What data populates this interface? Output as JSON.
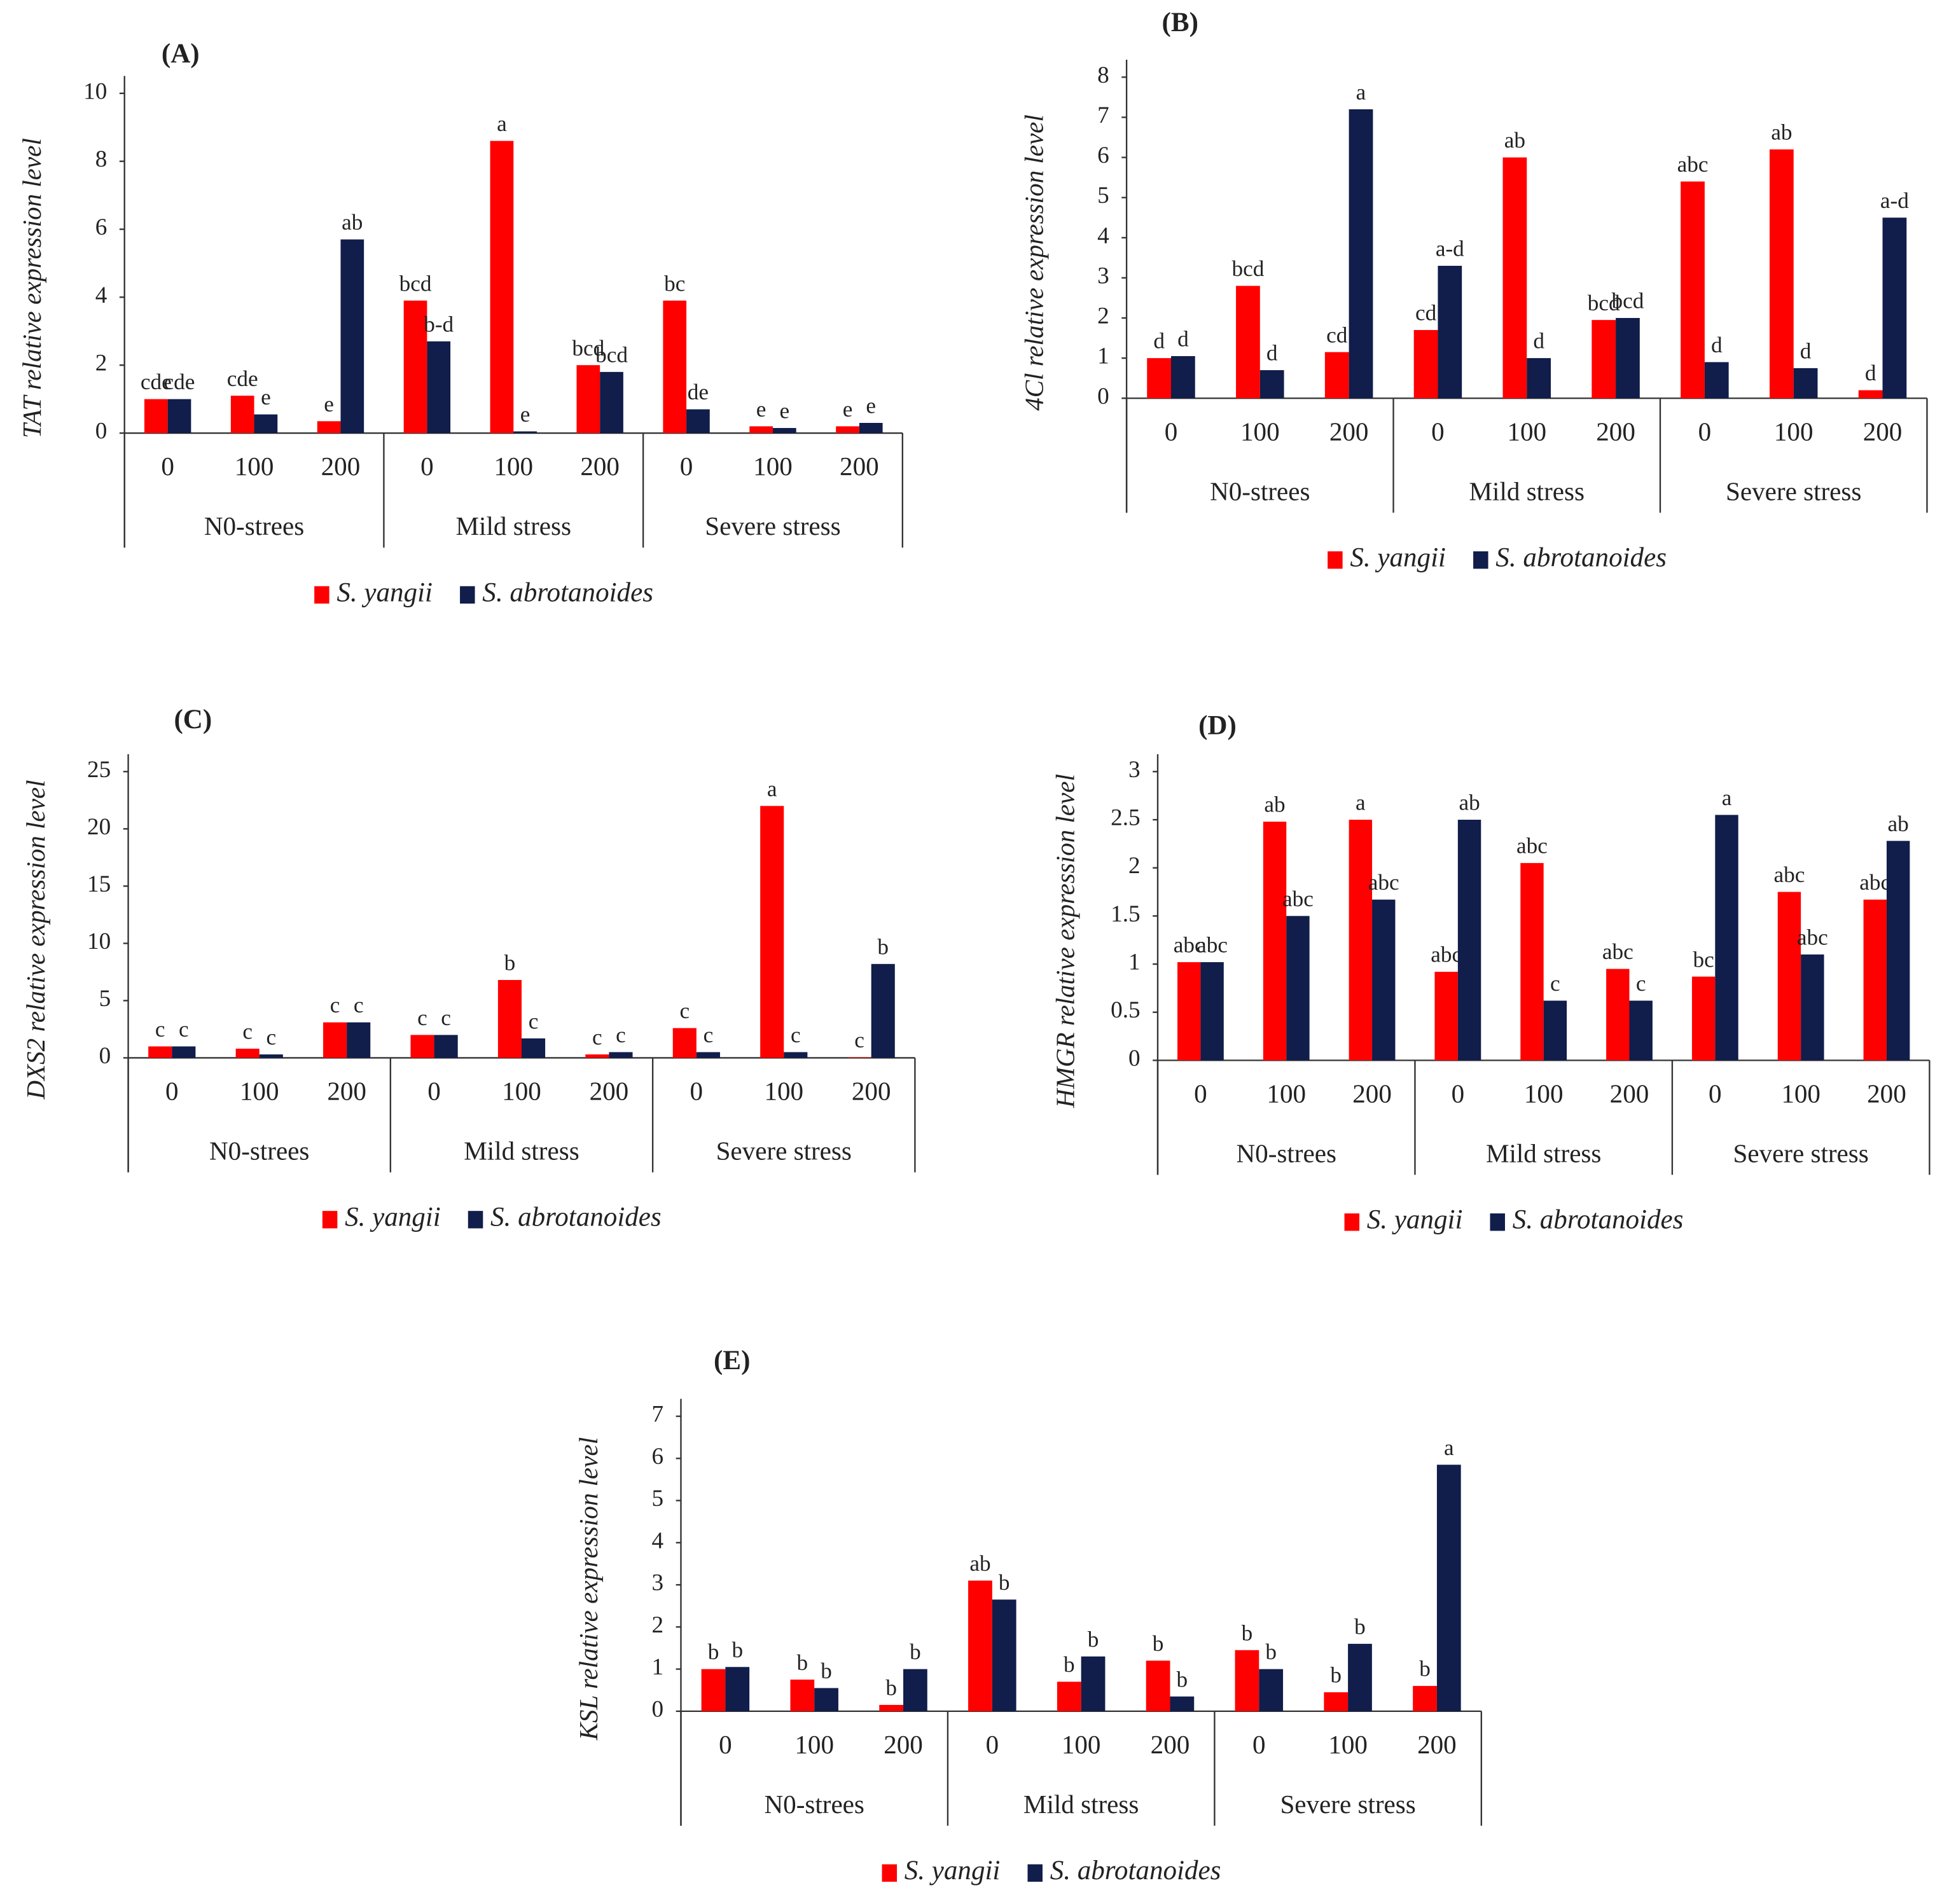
{
  "chart_data": [
    {
      "type": "bar",
      "title": "(A)",
      "ylabel": "TAT relative expression level",
      "categories": [
        "0",
        "100",
        "200",
        "0",
        "100",
        "200",
        "0",
        "100",
        "200"
      ],
      "groups": [
        "N0-strees",
        "Mild stress",
        "Severe stress"
      ],
      "ylim": [
        0,
        10
      ],
      "yticks": [
        0,
        2,
        4,
        6,
        8,
        10
      ],
      "series": [
        {
          "name": "S. yangii",
          "color": "#ff0000",
          "values": [
            1.0,
            1.1,
            0.35,
            3.9,
            8.6,
            2.0,
            3.9,
            0.2,
            0.2
          ],
          "labels": [
            "cde",
            "cde",
            "e",
            "bcd",
            "a",
            "bcd",
            "bc",
            "e",
            "e"
          ]
        },
        {
          "name": "S. abrotanoides",
          "color": "#111d4a",
          "values": [
            1.0,
            0.55,
            5.7,
            2.7,
            0.05,
            1.8,
            0.7,
            0.15,
            0.3
          ],
          "labels": [
            "cde",
            "e",
            "ab",
            "b-d",
            "e",
            "bcd",
            "de",
            "e",
            "e"
          ]
        }
      ]
    },
    {
      "type": "bar",
      "title": "(B)",
      "ylabel": "4Cl relative expression level",
      "categories": [
        "0",
        "100",
        "200",
        "0",
        "100",
        "200",
        "0",
        "100",
        "200"
      ],
      "groups": [
        "N0-strees",
        "Mild stress",
        "Severe stress"
      ],
      "ylim": [
        0,
        8
      ],
      "yticks": [
        0,
        1,
        2,
        3,
        4,
        5,
        6,
        7,
        8
      ],
      "series": [
        {
          "name": "S. yangii",
          "color": "#ff0000",
          "values": [
            1.0,
            2.8,
            1.15,
            1.7,
            6.0,
            1.95,
            5.4,
            6.2,
            0.2
          ],
          "labels": [
            "d",
            "bcd",
            "cd",
            "cd",
            "ab",
            "bcd",
            "abc",
            "ab",
            "d"
          ]
        },
        {
          "name": "S. abrotanoides",
          "color": "#111d4a",
          "values": [
            1.05,
            0.7,
            7.2,
            3.3,
            1.0,
            2.0,
            0.9,
            0.75,
            4.5
          ],
          "labels": [
            "d",
            "d",
            "a",
            "a-d",
            "d",
            "bcd",
            "d",
            "d",
            "a-d"
          ]
        }
      ]
    },
    {
      "type": "bar",
      "title": "(C)",
      "ylabel": "DXS2 relative expression level",
      "categories": [
        "0",
        "100",
        "200",
        "0",
        "100",
        "200",
        "0",
        "100",
        "200"
      ],
      "groups": [
        "N0-strees",
        "Mild stress",
        "Severe stress"
      ],
      "ylim": [
        0,
        25
      ],
      "yticks": [
        0,
        5,
        10,
        15,
        20,
        25
      ],
      "series": [
        {
          "name": "S. yangii",
          "color": "#ff0000",
          "values": [
            1.0,
            0.8,
            3.1,
            2.0,
            6.8,
            0.3,
            2.6,
            22.0,
            0.05
          ],
          "labels": [
            "c",
            "c",
            "c",
            "c",
            "b",
            "c",
            "c",
            "a",
            "c"
          ]
        },
        {
          "name": "S. abrotanoides",
          "color": "#111d4a",
          "values": [
            1.0,
            0.3,
            3.1,
            2.0,
            1.7,
            0.5,
            0.5,
            0.5,
            8.2
          ],
          "labels": [
            "c",
            "c",
            "c",
            "c",
            "c",
            "c",
            "c",
            "c",
            "b"
          ]
        }
      ]
    },
    {
      "type": "bar",
      "title": "(D)",
      "ylabel": "HMGR relative expression level",
      "categories": [
        "0",
        "100",
        "200",
        "0",
        "100",
        "200",
        "0",
        "100",
        "200"
      ],
      "groups": [
        "N0-strees",
        "Mild stress",
        "Severe stress"
      ],
      "ylim": [
        0,
        3
      ],
      "yticks": [
        0,
        0.5,
        1,
        1.5,
        2,
        2.5,
        3
      ],
      "series": [
        {
          "name": "S. yangii",
          "color": "#ff0000",
          "values": [
            1.02,
            2.48,
            2.5,
            0.92,
            2.05,
            0.95,
            0.87,
            1.75,
            1.67
          ],
          "labels": [
            "abc",
            "ab",
            "a",
            "abc",
            "abc",
            "abc",
            "bc",
            "abc",
            "abc"
          ]
        },
        {
          "name": "S. abrotanoides",
          "color": "#111d4a",
          "values": [
            1.02,
            1.5,
            1.67,
            2.5,
            0.62,
            0.62,
            2.55,
            1.1,
            2.28
          ],
          "labels": [
            "abc",
            "abc",
            "abc",
            "ab",
            "c",
            "c",
            "a",
            "abc",
            "ab"
          ]
        }
      ]
    },
    {
      "type": "bar",
      "title": "(E)",
      "ylabel": "KSL relative expression level",
      "categories": [
        "0",
        "100",
        "200",
        "0",
        "100",
        "200",
        "0",
        "100",
        "200"
      ],
      "groups": [
        "N0-strees",
        "Mild stress",
        "Severe stress"
      ],
      "ylim": [
        0,
        7
      ],
      "yticks": [
        0,
        1,
        2,
        3,
        4,
        5,
        6,
        7
      ],
      "series": [
        {
          "name": "S. yangii",
          "color": "#ff0000",
          "values": [
            1.0,
            0.75,
            0.15,
            3.1,
            0.7,
            1.2,
            1.45,
            0.45,
            0.6
          ],
          "labels": [
            "b",
            "b",
            "b",
            "ab",
            "b",
            "b",
            "b",
            "b",
            "b"
          ]
        },
        {
          "name": "S. abrotanoides",
          "color": "#111d4a",
          "values": [
            1.05,
            0.55,
            1.0,
            2.65,
            1.3,
            0.35,
            1.0,
            1.6,
            5.85
          ],
          "labels": [
            "b",
            "b",
            "b",
            "b",
            "b",
            "b",
            "b",
            "b",
            "a"
          ]
        }
      ]
    }
  ]
}
